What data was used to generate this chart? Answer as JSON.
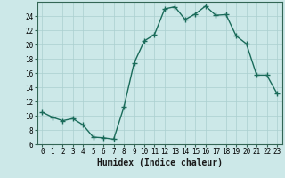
{
  "x": [
    0,
    1,
    2,
    3,
    4,
    5,
    6,
    7,
    8,
    9,
    10,
    11,
    12,
    13,
    14,
    15,
    16,
    17,
    18,
    19,
    20,
    21,
    22,
    23
  ],
  "y": [
    10.5,
    9.8,
    9.3,
    9.6,
    8.7,
    7.0,
    6.9,
    6.7,
    11.2,
    17.4,
    20.5,
    21.4,
    25.0,
    25.3,
    23.5,
    24.3,
    25.4,
    24.1,
    24.2,
    21.2,
    20.1,
    15.7,
    15.7,
    13.1
  ],
  "line_color": "#1a6b5a",
  "marker": "+",
  "marker_size": 4,
  "marker_lw": 1.0,
  "line_width": 1.0,
  "bg_color": "#cce8e8",
  "grid_color": "#aacfcf",
  "xlabel": "Humidex (Indice chaleur)",
  "xlim": [
    -0.5,
    23.5
  ],
  "ylim": [
    6,
    26
  ],
  "yticks": [
    6,
    8,
    10,
    12,
    14,
    16,
    18,
    20,
    22,
    24
  ],
  "xticks": [
    0,
    1,
    2,
    3,
    4,
    5,
    6,
    7,
    8,
    9,
    10,
    11,
    12,
    13,
    14,
    15,
    16,
    17,
    18,
    19,
    20,
    21,
    22,
    23
  ],
  "tick_fontsize": 5.5,
  "xlabel_fontsize": 7.0,
  "spine_color": "#336655"
}
